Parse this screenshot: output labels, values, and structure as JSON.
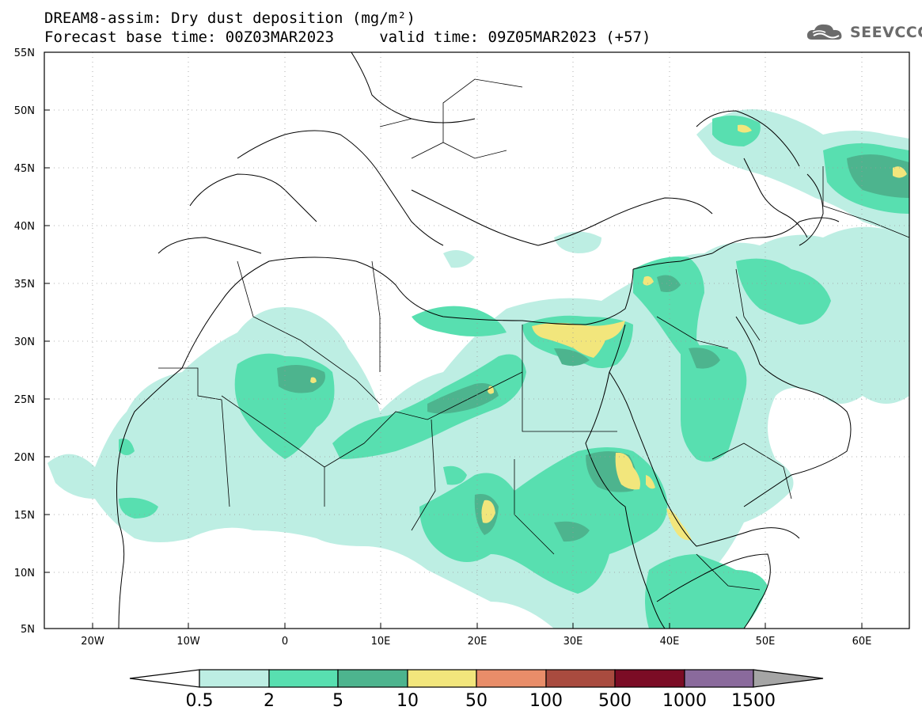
{
  "title_line_1": "DREAM8-assim: Dry dust deposition (mg/m²)",
  "title_line_2": "Forecast base time: 00Z03MAR2023     valid time: 09Z05MAR2023 (+57)",
  "logo": {
    "text": "SEEVCCC",
    "icon": "cloud-icon"
  },
  "map": {
    "lat_labels": [
      "55N",
      "50N",
      "45N",
      "40N",
      "35N",
      "30N",
      "25N",
      "20N",
      "15N",
      "10N",
      "5N"
    ],
    "lon_labels": [
      "20W",
      "10W",
      "0",
      "10E",
      "20E",
      "30E",
      "40E",
      "50E",
      "60E"
    ],
    "colors": {
      "land_outline": "#000000",
      "ocean": "#ffffff",
      "grid": "#9a9a9a"
    }
  },
  "legend": {
    "labels": [
      "0.5",
      "2",
      "5",
      "10",
      "50",
      "100",
      "500",
      "1000",
      "1500"
    ],
    "colors": [
      "#ffffff",
      "#bdeee3",
      "#58dfb0",
      "#4db48e",
      "#f2e67c",
      "#e98d69",
      "#a94b3f",
      "#7b0c25",
      "#8a6a9c",
      "#a5a5a5"
    ],
    "color_names": [
      "below-0.5",
      "0.5-2",
      "2-5",
      "5-10",
      "10-50",
      "50-100",
      "100-500",
      "500-1000",
      "1000-1500",
      "above-1500"
    ]
  }
}
